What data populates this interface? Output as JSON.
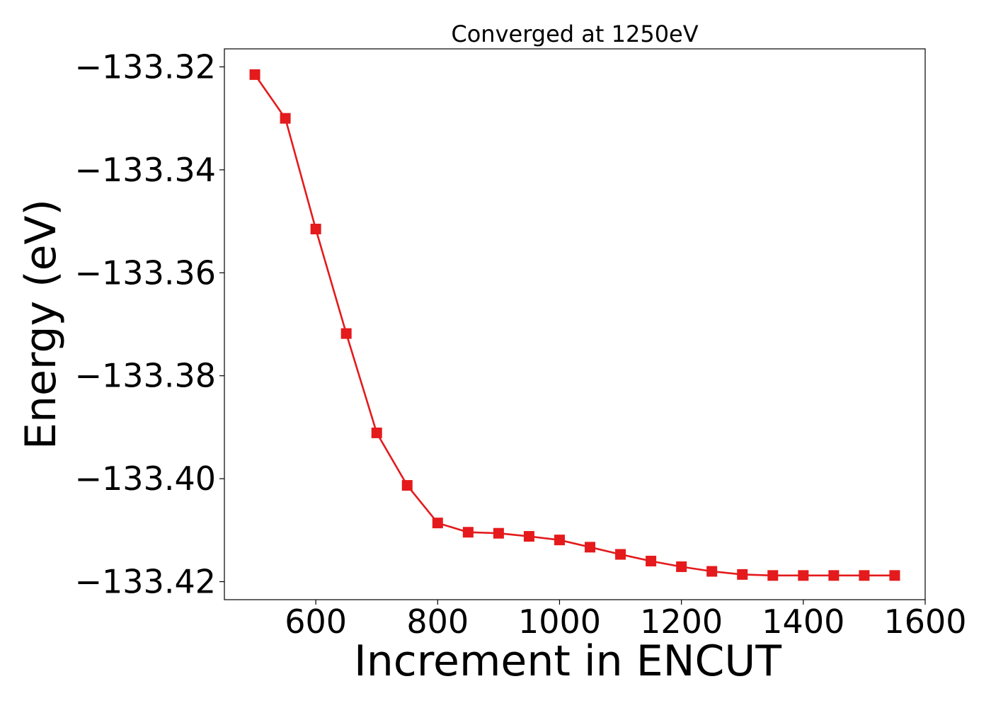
{
  "chart_data": {
    "type": "line",
    "title": "Converged at 1250eV",
    "xlabel": "Increment in ENCUT",
    "ylabel": "Energy (eV)",
    "xlim": [
      450,
      1600
    ],
    "ylim": [
      -133.4235,
      -133.3165
    ],
    "xticks": [
      600,
      800,
      1000,
      1200,
      1400,
      1600
    ],
    "xtick_labels": [
      "600",
      "800",
      "1000",
      "1200",
      "1400",
      "1600"
    ],
    "yticks": [
      -133.32,
      -133.34,
      -133.36,
      -133.38,
      -133.4,
      -133.42
    ],
    "ytick_labels": [
      "−133.32",
      "−133.34",
      "−133.36",
      "−133.38",
      "−133.40",
      "−133.42"
    ],
    "grid": false,
    "marker": "square",
    "series": [
      {
        "color": "#e41a1c",
        "x": [
          500,
          550,
          600,
          650,
          700,
          750,
          800,
          850,
          900,
          950,
          1000,
          1050,
          1100,
          1150,
          1200,
          1250,
          1300,
          1350,
          1400,
          1450,
          1500,
          1550
        ],
        "y": [
          -133.3215,
          -133.33,
          -133.3515,
          -133.3718,
          -133.3911,
          -133.4013,
          -133.4086,
          -133.4104,
          -133.4106,
          -133.4112,
          -133.4119,
          -133.4133,
          -133.4147,
          -133.416,
          -133.4171,
          -133.418,
          -133.4186,
          -133.4188,
          -133.4188,
          -133.4188,
          -133.4188,
          -133.4188
        ]
      }
    ]
  }
}
